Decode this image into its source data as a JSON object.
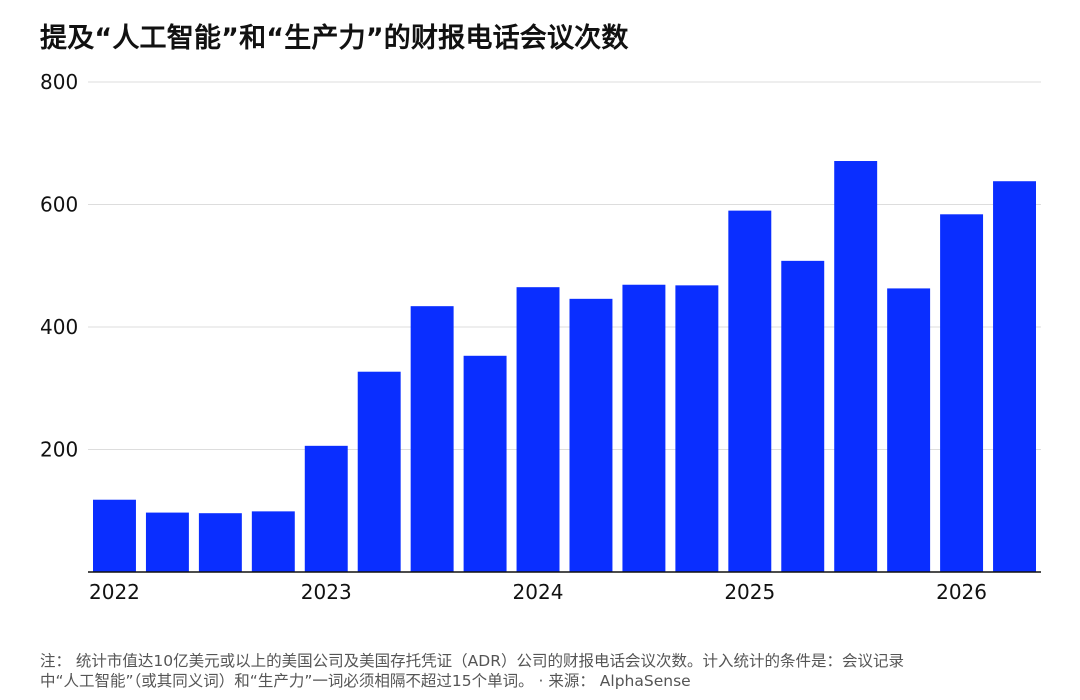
{
  "title": "提及“人工智能”和“生产力”的财报电话会议次数",
  "chart_data": {
    "type": "bar",
    "title": "提及“人工智能”和“生产力”的财报电话会议次数",
    "xlabel": "",
    "ylabel": "",
    "ylim": [
      0,
      800
    ],
    "yticks": [
      200,
      400,
      600,
      800
    ],
    "grid": true,
    "bar_color": "#0A2EFF",
    "categories": [
      "2022 Q1",
      "2022 Q2",
      "2022 Q3",
      "2022 Q4",
      "2023 Q1",
      "2023 Q2",
      "2023 Q3",
      "2023 Q4",
      "2024 Q1",
      "2024 Q2",
      "2024 Q3",
      "2024 Q4",
      "2025 Q1",
      "2025 Q2",
      "2025 Q3",
      "2025 Q4",
      "2026 Q1",
      "2026 Q2"
    ],
    "values": [
      118,
      97,
      96,
      99,
      206,
      327,
      434,
      353,
      465,
      446,
      469,
      468,
      590,
      508,
      671,
      463,
      584,
      638
    ],
    "xtick_labels": [
      {
        "label": "2022",
        "index": 0
      },
      {
        "label": "2023",
        "index": 4
      },
      {
        "label": "2024",
        "index": 8
      },
      {
        "label": "2025",
        "index": 12
      },
      {
        "label": "2026",
        "index": 16
      }
    ]
  },
  "note": {
    "line1": "注： 统计市值达10亿美元或以上的美国公司及美国存托凭证（ADR）公司的财报电话会议次数。计入统计的条件是：会议记录",
    "line2": "中“人工智能”（或其同义词）和“生产力”一词必须相隔不超过15个单词。 · 来源： AlphaSense"
  }
}
